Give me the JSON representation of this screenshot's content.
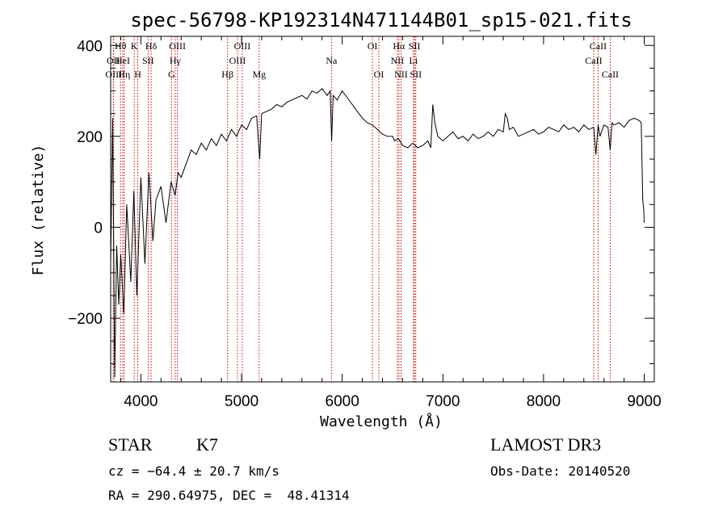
{
  "chart_data": {
    "type": "line",
    "title": "spec-56798-KP192314N471144B01_sp15-021.fits",
    "xlabel": "Wavelength (Å)",
    "ylabel": "Flux (relative)",
    "xlim": [
      3700,
      9100
    ],
    "ylim": [
      -340,
      420
    ],
    "x_ticks": [
      4000,
      5000,
      6000,
      7000,
      8000,
      9000
    ],
    "x_tick_labels": [
      "4000",
      "5000",
      "6000",
      "7000",
      "8000",
      "9000"
    ],
    "y_ticks": [
      -200,
      0,
      200,
      400
    ],
    "y_tick_labels": [
      "−200",
      "0",
      "200",
      "400"
    ],
    "series": [
      {
        "name": "flux",
        "x": [
          3700,
          3720,
          3740,
          3760,
          3780,
          3800,
          3830,
          3860,
          3900,
          3930,
          3960,
          4000,
          4040,
          4080,
          4120,
          4150,
          4200,
          4250,
          4300,
          4340,
          4370,
          4400,
          4450,
          4500,
          4550,
          4600,
          4650,
          4700,
          4750,
          4800,
          4850,
          4900,
          4950,
          5000,
          5050,
          5100,
          5150,
          5180,
          5200,
          5250,
          5300,
          5350,
          5400,
          5450,
          5500,
          5550,
          5600,
          5650,
          5700,
          5750,
          5800,
          5850,
          5880,
          5895,
          5910,
          5950,
          6000,
          6050,
          6100,
          6150,
          6200,
          6250,
          6300,
          6350,
          6400,
          6450,
          6500,
          6520,
          6560,
          6600,
          6650,
          6700,
          6750,
          6800,
          6850,
          6880,
          6900,
          6920,
          6950,
          7000,
          7050,
          7100,
          7150,
          7200,
          7250,
          7300,
          7350,
          7400,
          7450,
          7500,
          7550,
          7600,
          7620,
          7640,
          7660,
          7700,
          7750,
          7800,
          7850,
          7900,
          7950,
          8000,
          8050,
          8100,
          8150,
          8200,
          8250,
          8300,
          8350,
          8400,
          8450,
          8498,
          8520,
          8542,
          8560,
          8600,
          8640,
          8662,
          8680,
          8700,
          8750,
          8800,
          8850,
          8900,
          8950,
          8970,
          8985,
          8995,
          9000
        ],
        "y": [
          -80,
          240,
          -330,
          -40,
          -170,
          -60,
          -190,
          50,
          -120,
          80,
          -150,
          110,
          -80,
          120,
          -30,
          60,
          90,
          10,
          100,
          70,
          120,
          110,
          140,
          170,
          160,
          185,
          170,
          195,
          180,
          205,
          190,
          215,
          200,
          225,
          215,
          240,
          245,
          150,
          250,
          255,
          260,
          270,
          265,
          275,
          280,
          285,
          290,
          282,
          300,
          295,
          305,
          290,
          300,
          190,
          290,
          280,
          300,
          285,
          270,
          255,
          240,
          230,
          225,
          215,
          205,
          200,
          200,
          190,
          195,
          180,
          175,
          185,
          175,
          180,
          190,
          175,
          270,
          230,
          200,
          190,
          200,
          210,
          195,
          200,
          190,
          205,
          195,
          200,
          210,
          200,
          215,
          210,
          250,
          240,
          215,
          220,
          200,
          205,
          210,
          215,
          205,
          210,
          220,
          215,
          210,
          225,
          215,
          220,
          210,
          225,
          215,
          220,
          160,
          225,
          200,
          225,
          220,
          170,
          230,
          225,
          230,
          220,
          235,
          240,
          235,
          230,
          60,
          40,
          10
        ]
      }
    ],
    "spectral_lines": [
      {
        "label": "OII",
        "wavelength": 3727,
        "row": 1
      },
      {
        "label": "OIII",
        "wavelength": 3730,
        "row": 2
      },
      {
        "label": "Hθ",
        "wavelength": 3798,
        "row": 0
      },
      {
        "label": "HeI",
        "wavelength": 3820,
        "row": 1
      },
      {
        "label": "Hη",
        "wavelength": 3835,
        "row": 2
      },
      {
        "label": "K",
        "wavelength": 3934,
        "row": 0
      },
      {
        "label": "H",
        "wavelength": 3969,
        "row": 2
      },
      {
        "label": "SII",
        "wavelength": 4072,
        "row": 1
      },
      {
        "label": "Hδ",
        "wavelength": 4102,
        "row": 0
      },
      {
        "label": "G",
        "wavelength": 4304,
        "row": 2
      },
      {
        "label": "Hγ",
        "wavelength": 4341,
        "row": 1
      },
      {
        "label": "OIII",
        "wavelength": 4363,
        "row": 0
      },
      {
        "label": "Hβ",
        "wavelength": 4861,
        "row": 2
      },
      {
        "label": "OIII",
        "wavelength": 4959,
        "row": 1
      },
      {
        "label": "OIII",
        "wavelength": 5007,
        "row": 0
      },
      {
        "label": "Mg",
        "wavelength": 5175,
        "row": 2
      },
      {
        "label": "Na",
        "wavelength": 5893,
        "row": 1
      },
      {
        "label": "OI",
        "wavelength": 6300,
        "row": 0
      },
      {
        "label": "OI",
        "wavelength": 6364,
        "row": 2
      },
      {
        "label": "NII",
        "wavelength": 6548,
        "row": 1
      },
      {
        "label": "Hα",
        "wavelength": 6563,
        "row": 0
      },
      {
        "label": "NII",
        "wavelength": 6584,
        "row": 2
      },
      {
        "label": "Li",
        "wavelength": 6708,
        "row": 1
      },
      {
        "label": "SII",
        "wavelength": 6717,
        "row": 0
      },
      {
        "label": "SII",
        "wavelength": 6731,
        "row": 2
      },
      {
        "label": "CaII",
        "wavelength": 8498,
        "row": 1
      },
      {
        "label": "CaII",
        "wavelength": 8542,
        "row": 0
      },
      {
        "label": "CaII",
        "wavelength": 8662,
        "row": 2
      }
    ]
  },
  "info": {
    "object_class": "STAR",
    "subclass": "K7",
    "survey": "LAMOST DR3",
    "redshift": "cz = −64.4 ± 20.7 km/s",
    "obs_date": "Obs-Date: 20140520",
    "coords": "RA = 290.64975, DEC =  48.41314"
  },
  "colors": {
    "line_marker": "#cc0000",
    "spectrum": "#000000",
    "axis": "#000000"
  }
}
